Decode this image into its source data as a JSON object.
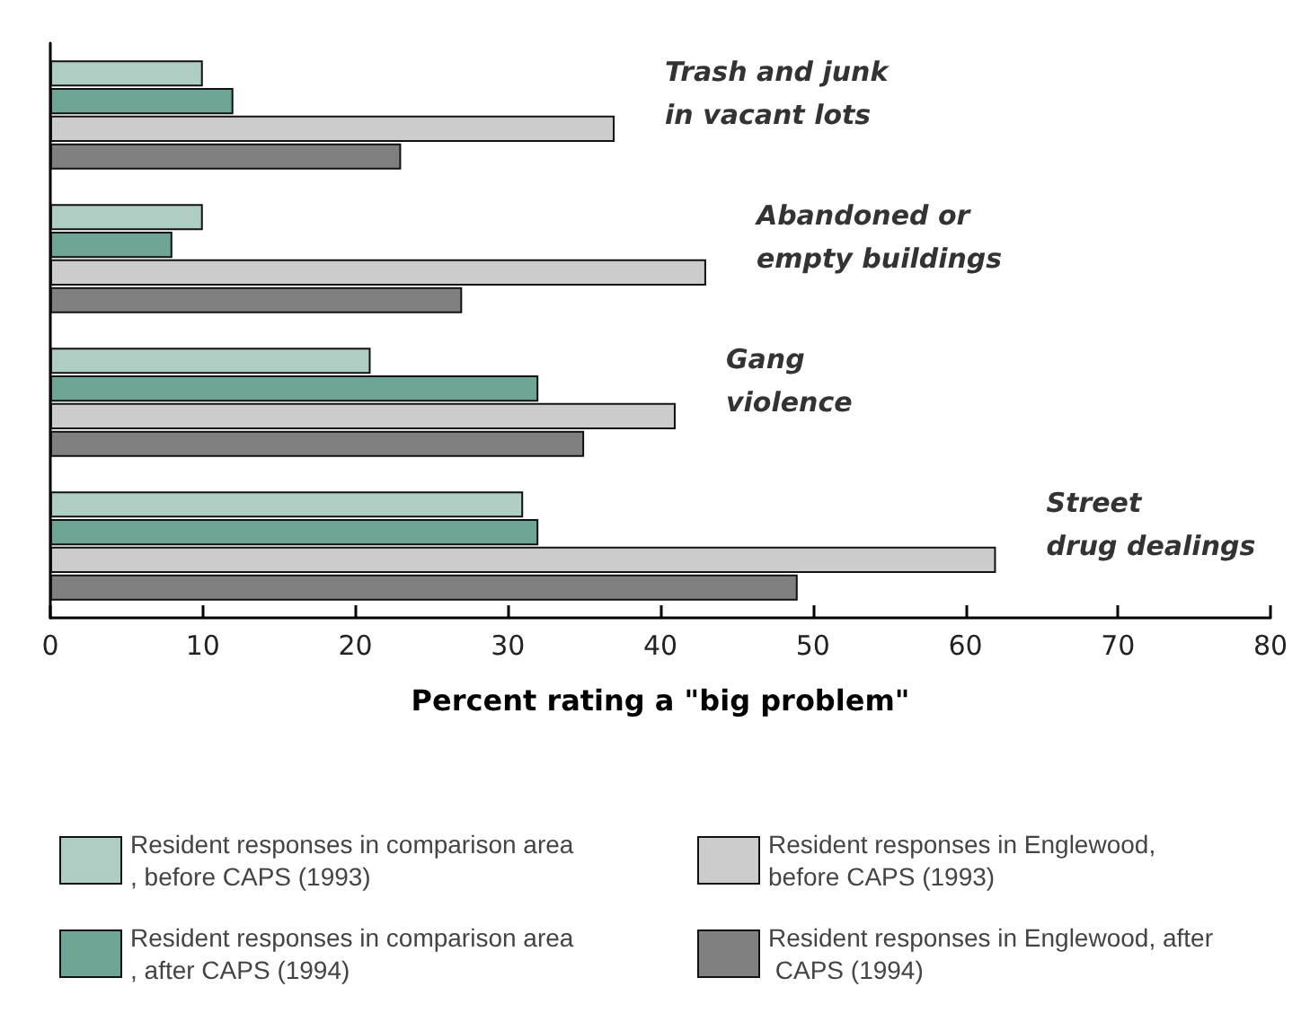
{
  "chart_data": {
    "type": "bar",
    "orientation": "horizontal",
    "xlabel": "Percent rating a \"big problem\"",
    "categories": [
      "Trash and junk\nin vacant lots",
      "Abandoned or\nempty buildings",
      "Gang\nviolence",
      "Street\ndrug dealings"
    ],
    "series": [
      {
        "name": "Resident responses in comparison area, before CAPS (1993)",
        "color": "#b0cdc4",
        "values": [
          10,
          10,
          21,
          31
        ]
      },
      {
        "name": "Resident responses in comparison area, after CAPS (1994)",
        "color": "#6ea597",
        "values": [
          12,
          8,
          32,
          32
        ]
      },
      {
        "name": "Resident responses in Englewood, before CAPS (1993)",
        "color": "#cccccc",
        "values": [
          37,
          43,
          41,
          62
        ]
      },
      {
        "name": "Resident responses in Englewood, after CAPS (1994)",
        "color": "#808080",
        "values": [
          23,
          27,
          35,
          49
        ]
      }
    ],
    "xlim": [
      0,
      80
    ],
    "xticks": [
      0,
      10,
      20,
      30,
      40,
      50,
      60,
      70,
      80
    ],
    "grid": false,
    "legend": "bottom"
  }
}
